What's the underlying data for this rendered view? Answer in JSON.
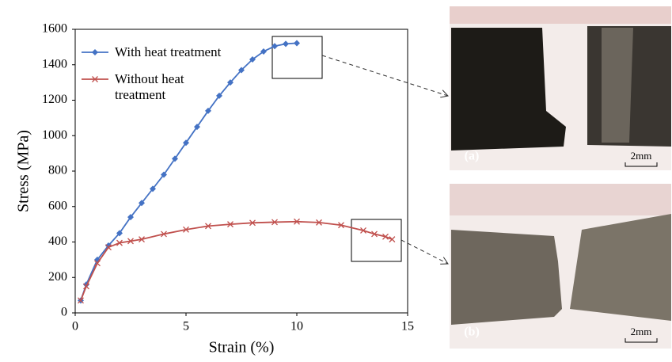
{
  "chart_data": {
    "type": "line",
    "x_label": "Strain (%)",
    "y_label": "Stress (MPa)",
    "xlim": [
      0,
      15
    ],
    "xticks": [
      0,
      5,
      10,
      15
    ],
    "ylim": [
      0,
      1600
    ],
    "yticks": [
      0,
      200,
      400,
      600,
      800,
      1000,
      1200,
      1400,
      1600
    ],
    "grid": false,
    "legend": "upper left",
    "series": [
      {
        "name": "With heat treatment",
        "color": "#4472c4",
        "marker": "diamond",
        "x": [
          0.25,
          0.5,
          1.0,
          1.5,
          2.0,
          2.5,
          3.0,
          3.5,
          4.0,
          4.5,
          5.0,
          5.5,
          6.0,
          6.5,
          7.0,
          7.5,
          8.0,
          8.5,
          9.0,
          9.5,
          10.0
        ],
        "values": [
          70,
          160,
          300,
          380,
          450,
          540,
          620,
          700,
          780,
          870,
          960,
          1050,
          1140,
          1225,
          1300,
          1370,
          1430,
          1475,
          1505,
          1518,
          1522
        ]
      },
      {
        "name": "Without heat treatment",
        "color": "#c0504d",
        "marker": "x",
        "x": [
          0.25,
          0.5,
          1.0,
          1.5,
          2.0,
          2.5,
          3.0,
          4.0,
          5.0,
          6.0,
          7.0,
          8.0,
          9.0,
          10.0,
          11.0,
          12.0,
          13.0,
          13.5,
          14.0,
          14.3
        ],
        "values": [
          70,
          150,
          280,
          370,
          395,
          405,
          415,
          445,
          470,
          490,
          500,
          508,
          512,
          515,
          510,
          495,
          465,
          445,
          430,
          415
        ]
      }
    ]
  },
  "images": [
    {
      "label": "(a)",
      "scale": "2mm"
    },
    {
      "label": "(b)",
      "scale": "2mm"
    }
  ]
}
